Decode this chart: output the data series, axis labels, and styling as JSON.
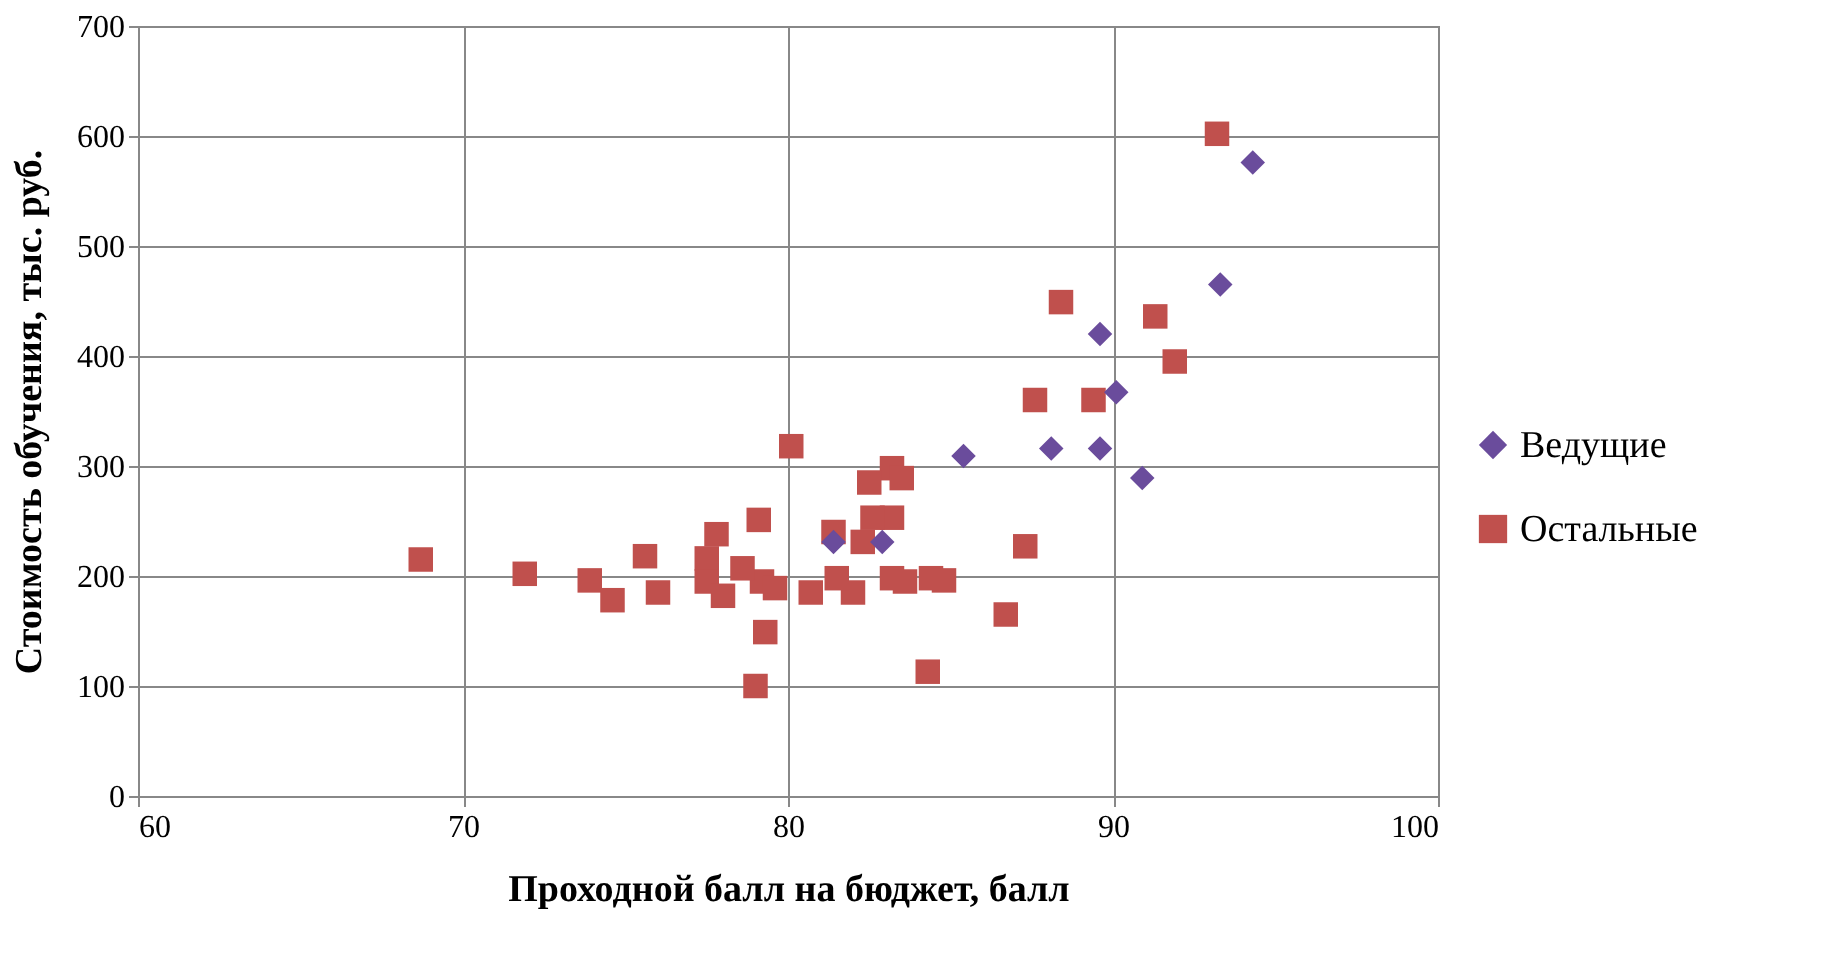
{
  "chart_data": {
    "type": "scatter",
    "xlabel": "Проходной балл на бюджет, балл",
    "ylabel": "Стоимость обучения, тыс. руб.",
    "xlim": [
      60,
      100
    ],
    "xticks": [
      60,
      70,
      80,
      90,
      100
    ],
    "ylim": [
      0,
      700
    ],
    "yticks": [
      0,
      100,
      200,
      300,
      400,
      500,
      600,
      700
    ],
    "grid": true,
    "legend": "right",
    "series": [
      {
        "name": "Ведущие",
        "color": "#6a4c9c",
        "marker": "diamond",
        "x": [
          94.3,
          93.3,
          89.6,
          90.1,
          85.4,
          88.1,
          89.6,
          90.9,
          81.4,
          82.9
        ],
        "values": [
          576,
          465,
          420,
          367,
          309,
          316,
          316,
          289,
          231,
          231
        ]
      },
      {
        "name": "Остальные",
        "color": "#c0504d",
        "marker": "square",
        "x": [
          93.2,
          88.4,
          91.3,
          91.9,
          87.6,
          89.4,
          80.1,
          87.3,
          86.7,
          84.3,
          83.2,
          83.5,
          82.5,
          79.1,
          81.4,
          83.2,
          82.6,
          82.3,
          79.3,
          79.0,
          80.7,
          82.0,
          83.2,
          83.6,
          84.4,
          84.8,
          81.5,
          79.2,
          79.6,
          68.7,
          71.9,
          73.9,
          74.6,
          75.6,
          76.0,
          77.8,
          77.5,
          77.5,
          78.6,
          78.0
        ],
        "values": [
          602,
          449,
          436,
          395,
          360,
          360,
          318,
          227,
          165,
          113,
          298,
          289,
          285,
          251,
          240,
          253,
          253,
          231,
          149,
          100,
          185,
          185,
          198,
          195,
          198,
          196,
          198,
          195,
          189,
          215,
          202,
          196,
          178,
          218,
          185,
          238,
          216,
          195,
          207,
          182
        ]
      }
    ]
  }
}
